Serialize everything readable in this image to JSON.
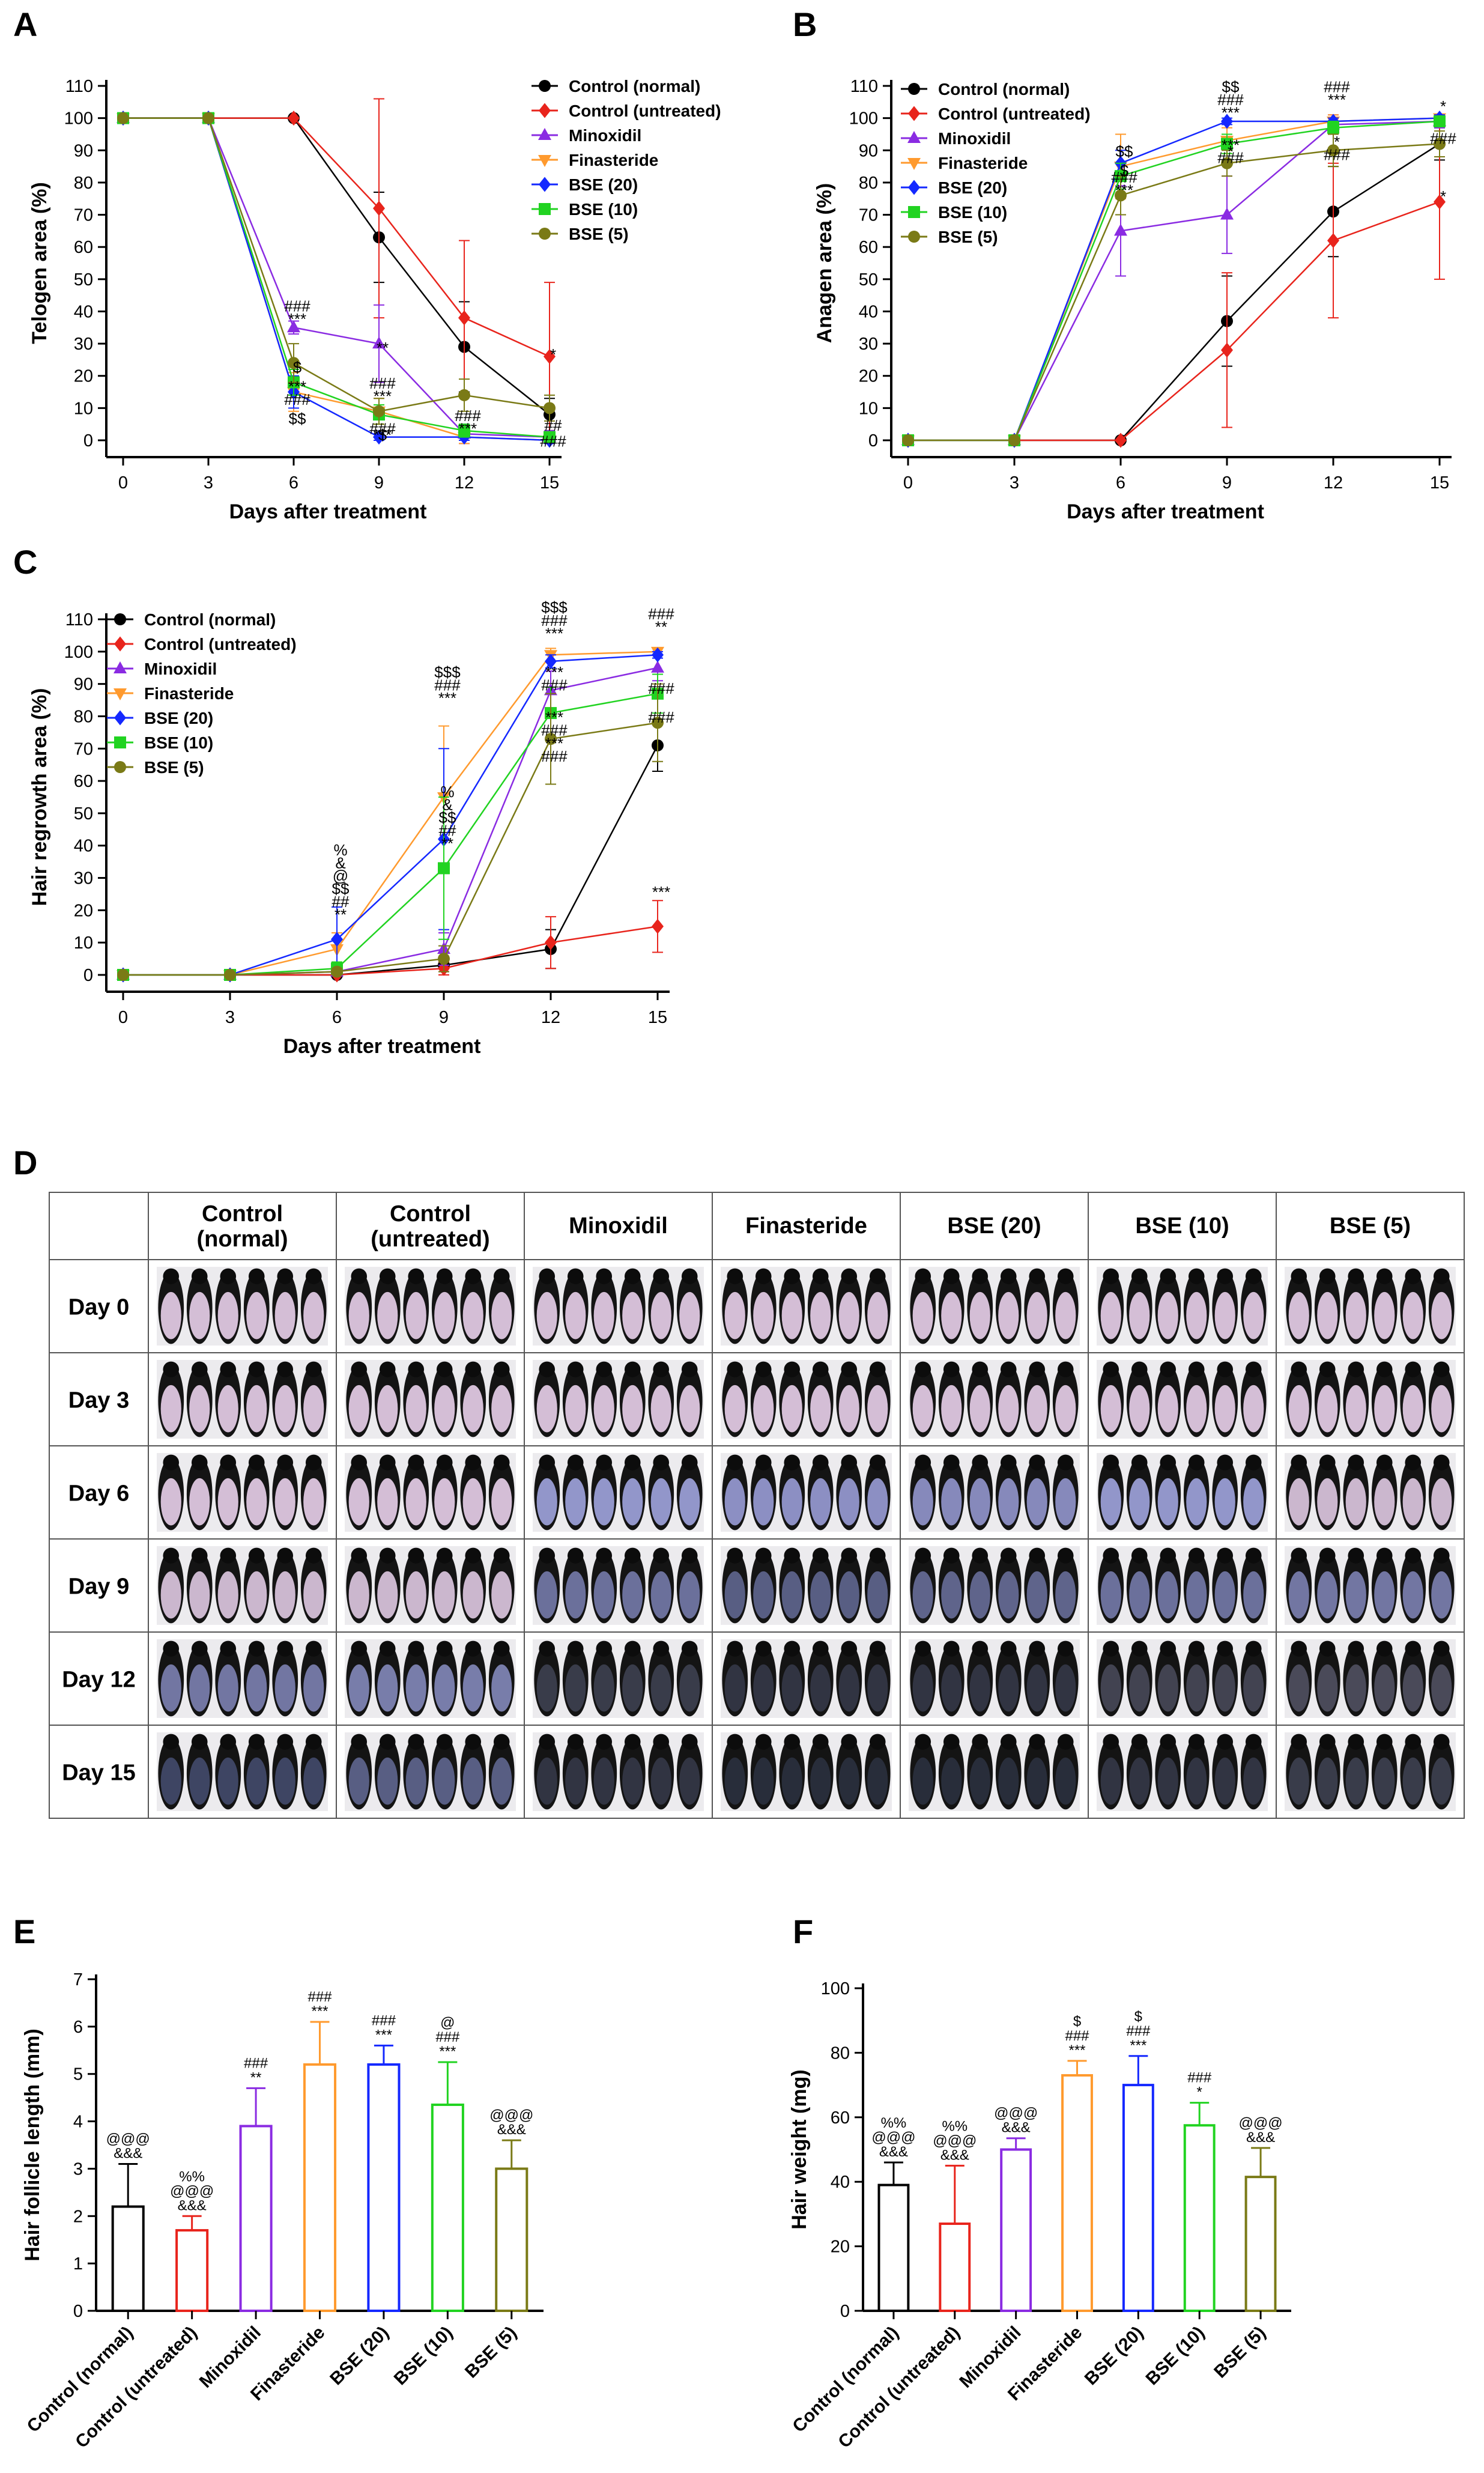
{
  "colors": {
    "Control (normal)": "#000000",
    "Control (untreated)": "#e8241c",
    "Minoxidil": "#8a2be2",
    "Finasteride": "#ff9a2e",
    "BSE (20)": "#1428ff",
    "BSE (10)": "#21d321",
    "BSE (5)": "#7a7a16"
  },
  "chart_data": [
    {
      "panel": "A",
      "type": "line",
      "xlabel": "Days after treatment",
      "ylabel": "Telogen area (%)",
      "x": [
        0,
        3,
        6,
        9,
        12,
        15
      ],
      "xticks": [
        "0",
        "3",
        "6",
        "9",
        "12",
        "15"
      ],
      "ylim": [
        0,
        110
      ],
      "yticks": [
        0,
        10,
        20,
        30,
        40,
        50,
        60,
        70,
        80,
        90,
        100,
        110
      ],
      "legend": "top-right",
      "series": [
        {
          "name": "Control (normal)",
          "values": [
            100,
            100,
            100,
            63,
            29,
            8
          ],
          "err": [
            0,
            0,
            0,
            14,
            14,
            5
          ]
        },
        {
          "name": "Control (untreated)",
          "values": [
            100,
            100,
            100,
            72,
            38,
            26
          ],
          "err": [
            0,
            0,
            0,
            34,
            24,
            23
          ]
        },
        {
          "name": "Minoxidil",
          "values": [
            100,
            100,
            35,
            30,
            2,
            1
          ],
          "err": [
            0,
            0,
            2,
            12,
            3,
            2
          ]
        },
        {
          "name": "Finasteride",
          "values": [
            100,
            100,
            15,
            9,
            1,
            0
          ],
          "err": [
            0,
            0,
            6,
            4,
            2,
            1
          ]
        },
        {
          "name": "BSE (20)",
          "values": [
            100,
            100,
            15,
            1,
            1,
            0
          ],
          "err": [
            0,
            0,
            5,
            1,
            1,
            1
          ]
        },
        {
          "name": "BSE (10)",
          "values": [
            100,
            100,
            18,
            8,
            3,
            1
          ],
          "err": [
            0,
            0,
            4,
            3,
            2,
            1
          ]
        },
        {
          "name": "BSE (5)",
          "values": [
            100,
            100,
            24,
            9,
            14,
            10
          ],
          "err": [
            0,
            0,
            6,
            4,
            5,
            4
          ]
        }
      ],
      "annotations": [
        {
          "x": 6,
          "y": 40,
          "text": "###"
        },
        {
          "x": 6,
          "y": 36,
          "text": "***"
        },
        {
          "x": 6,
          "y": 15,
          "text": "***"
        },
        {
          "x": 6,
          "y": 11,
          "text": "###"
        },
        {
          "x": 6,
          "y": 21,
          "text": "$"
        },
        {
          "x": 6,
          "y": 5,
          "text": "$$"
        },
        {
          "x": 9,
          "y": 27,
          "text": "**"
        },
        {
          "x": 9,
          "y": 16,
          "text": "###"
        },
        {
          "x": 9,
          "y": 12,
          "text": "***"
        },
        {
          "x": 9,
          "y": 0,
          "text": "$"
        },
        {
          "x": 9,
          "y": 0,
          "text": "***"
        },
        {
          "x": 9,
          "y": 2,
          "text": "###"
        },
        {
          "x": 12,
          "y": 6,
          "text": "###"
        },
        {
          "x": 12,
          "y": 2,
          "text": "***"
        },
        {
          "x": 15,
          "y": 25,
          "text": "*"
        },
        {
          "x": 15,
          "y": 3,
          "text": "##"
        },
        {
          "x": 15,
          "y": -2,
          "text": "###"
        }
      ]
    },
    {
      "panel": "B",
      "type": "line",
      "xlabel": "Days after treatment",
      "ylabel": "Anagen area (%)",
      "x": [
        0,
        3,
        6,
        9,
        12,
        15
      ],
      "xticks": [
        "0",
        "3",
        "6",
        "9",
        "12",
        "15"
      ],
      "ylim": [
        0,
        110
      ],
      "yticks": [
        0,
        10,
        20,
        30,
        40,
        50,
        60,
        70,
        80,
        90,
        100,
        110
      ],
      "legend": "top-left",
      "series": [
        {
          "name": "Control (normal)",
          "values": [
            0,
            0,
            0,
            37,
            71,
            92
          ],
          "err": [
            0,
            0,
            0,
            14,
            14,
            5
          ]
        },
        {
          "name": "Control (untreated)",
          "values": [
            0,
            0,
            0,
            28,
            62,
            74
          ],
          "err": [
            0,
            0,
            0,
            24,
            24,
            24
          ]
        },
        {
          "name": "Minoxidil",
          "values": [
            0,
            0,
            65,
            70,
            98,
            99
          ],
          "err": [
            0,
            0,
            14,
            12,
            3,
            2
          ]
        },
        {
          "name": "Finasteride",
          "values": [
            0,
            0,
            85,
            93,
            99,
            100
          ],
          "err": [
            0,
            0,
            10,
            4,
            2,
            1
          ]
        },
        {
          "name": "BSE (20)",
          "values": [
            0,
            0,
            86,
            99,
            99,
            100
          ],
          "err": [
            0,
            0,
            4,
            1,
            1,
            1
          ]
        },
        {
          "name": "BSE (10)",
          "values": [
            0,
            0,
            82,
            92,
            97,
            99
          ],
          "err": [
            0,
            0,
            4,
            3,
            2,
            1
          ]
        },
        {
          "name": "BSE (5)",
          "values": [
            0,
            0,
            76,
            86,
            90,
            92
          ],
          "err": [
            0,
            0,
            6,
            4,
            5,
            4
          ]
        }
      ],
      "annotations": [
        {
          "x": 6,
          "y": 88,
          "text": "$$"
        },
        {
          "x": 6,
          "y": 82,
          "text": "$"
        },
        {
          "x": 6,
          "y": 80,
          "text": "###"
        },
        {
          "x": 6,
          "y": 76,
          "text": "***"
        },
        {
          "x": 9,
          "y": 108,
          "text": "$$"
        },
        {
          "x": 9,
          "y": 104,
          "text": "###"
        },
        {
          "x": 9,
          "y": 100,
          "text": "***"
        },
        {
          "x": 9,
          "y": 90,
          "text": "***"
        },
        {
          "x": 9,
          "y": 86,
          "text": "###"
        },
        {
          "x": 9,
          "y": 88,
          "text": "*"
        },
        {
          "x": 12,
          "y": 108,
          "text": "###"
        },
        {
          "x": 12,
          "y": 104,
          "text": "***"
        },
        {
          "x": 12,
          "y": 91,
          "text": "*"
        },
        {
          "x": 12,
          "y": 87,
          "text": "###"
        },
        {
          "x": 15,
          "y": 102,
          "text": "*"
        },
        {
          "x": 15,
          "y": 92,
          "text": "###"
        },
        {
          "x": 15,
          "y": 74,
          "text": "*"
        }
      ]
    },
    {
      "panel": "C",
      "type": "line",
      "xlabel": "Days after treatment",
      "ylabel": "Hair regrowth area (%)",
      "x": [
        0,
        3,
        6,
        9,
        12,
        15
      ],
      "xticks": [
        "0",
        "3",
        "6",
        "9",
        "12",
        "15"
      ],
      "ylim": [
        0,
        110
      ],
      "yticks": [
        0,
        10,
        20,
        30,
        40,
        50,
        60,
        70,
        80,
        90,
        100,
        110
      ],
      "legend": "top-left",
      "series": [
        {
          "name": "Control (normal)",
          "values": [
            0,
            0,
            0,
            3,
            8,
            71
          ],
          "err": [
            0,
            0,
            0,
            2,
            6,
            8
          ]
        },
        {
          "name": "Control (untreated)",
          "values": [
            0,
            0,
            0,
            2,
            10,
            15
          ],
          "err": [
            0,
            0,
            0,
            2,
            8,
            8
          ]
        },
        {
          "name": "Minoxidil",
          "values": [
            0,
            0,
            1,
            8,
            88,
            95
          ],
          "err": [
            0,
            0,
            1,
            5,
            6,
            4
          ]
        },
        {
          "name": "Finasteride",
          "values": [
            0,
            0,
            8,
            55,
            99,
            100
          ],
          "err": [
            0,
            0,
            5,
            22,
            2,
            1
          ]
        },
        {
          "name": "BSE (20)",
          "values": [
            0,
            0,
            11,
            42,
            97,
            99
          ],
          "err": [
            0,
            0,
            10,
            28,
            2,
            1
          ]
        },
        {
          "name": "BSE (10)",
          "values": [
            0,
            0,
            2,
            33,
            81,
            87
          ],
          "err": [
            0,
            0,
            2,
            22,
            8,
            6
          ]
        },
        {
          "name": "BSE (5)",
          "values": [
            0,
            0,
            1,
            5,
            73,
            78
          ],
          "err": [
            0,
            0,
            1,
            4,
            14,
            12
          ]
        }
      ],
      "annotations": [
        {
          "x": 6,
          "y": 37,
          "text": "%"
        },
        {
          "x": 6,
          "y": 33,
          "text": "&"
        },
        {
          "x": 6,
          "y": 29,
          "text": "@"
        },
        {
          "x": 6,
          "y": 25,
          "text": "$$"
        },
        {
          "x": 6,
          "y": 21,
          "text": "##"
        },
        {
          "x": 6,
          "y": 17,
          "text": "**"
        },
        {
          "x": 9,
          "y": 92,
          "text": "$$$"
        },
        {
          "x": 9,
          "y": 88,
          "text": "###"
        },
        {
          "x": 9,
          "y": 84,
          "text": "***"
        },
        {
          "x": 9,
          "y": 55,
          "text": "%"
        },
        {
          "x": 9,
          "y": 51,
          "text": "&"
        },
        {
          "x": 9,
          "y": 47,
          "text": "$$"
        },
        {
          "x": 9,
          "y": 43,
          "text": "##"
        },
        {
          "x": 9,
          "y": 39,
          "text": "**"
        },
        {
          "x": 12,
          "y": 112,
          "text": "$$$"
        },
        {
          "x": 12,
          "y": 108,
          "text": "###"
        },
        {
          "x": 12,
          "y": 104,
          "text": "***"
        },
        {
          "x": 12,
          "y": 92,
          "text": "***"
        },
        {
          "x": 12,
          "y": 88,
          "text": "###"
        },
        {
          "x": 12,
          "y": 78,
          "text": "***"
        },
        {
          "x": 12,
          "y": 74,
          "text": "###"
        },
        {
          "x": 12,
          "y": 70,
          "text": "***"
        },
        {
          "x": 12,
          "y": 66,
          "text": "###"
        },
        {
          "x": 15,
          "y": 110,
          "text": "###"
        },
        {
          "x": 15,
          "y": 106,
          "text": "**"
        },
        {
          "x": 15,
          "y": 87,
          "text": "###"
        },
        {
          "x": 15,
          "y": 78,
          "text": "###"
        },
        {
          "x": 15,
          "y": 24,
          "text": "***"
        }
      ]
    },
    {
      "panel": "D",
      "type": "table",
      "columns": [
        "Control\n(normal)",
        "Control\n(untreated)",
        "Minoxidil",
        "Finasteride",
        "BSE (20)",
        "BSE (10)",
        "BSE (5)"
      ],
      "rows": [
        "Day 0",
        "Day 3",
        "Day 6",
        "Day 9",
        "Day 12",
        "Day 15"
      ],
      "regrowth": [
        [
          0,
          0,
          0,
          0,
          0,
          0,
          0
        ],
        [
          0,
          0,
          0,
          0,
          0,
          0,
          0
        ],
        [
          0,
          0,
          0.1,
          0.15,
          0.2,
          0.1,
          0.05
        ],
        [
          0.05,
          0.05,
          0.4,
          0.55,
          0.5,
          0.4,
          0.35
        ],
        [
          0.35,
          0.3,
          0.9,
          0.95,
          0.95,
          0.85,
          0.8
        ],
        [
          0.75,
          0.55,
          0.95,
          1,
          1,
          0.95,
          0.9
        ]
      ]
    },
    {
      "panel": "E",
      "type": "bar",
      "ylabel": "Hair follicle length (mm)",
      "categories": [
        "Control (normal)",
        "Control (untreated)",
        "Minoxidil",
        "Finasteride",
        "BSE (20)",
        "BSE (10)",
        "BSE (5)"
      ],
      "values": [
        2.2,
        1.7,
        3.9,
        5.2,
        5.2,
        4.35,
        3.0
      ],
      "err": [
        0.9,
        0.3,
        0.8,
        0.9,
        0.4,
        0.9,
        0.6
      ],
      "ylim": [
        0,
        7
      ],
      "yticks": [
        0,
        1,
        2,
        3,
        4,
        5,
        6,
        7
      ],
      "annotations": [
        [
          "@@@",
          "&&&"
        ],
        [
          "%%",
          "@@@",
          "&&&"
        ],
        [
          "###",
          "**"
        ],
        [
          "###",
          "***"
        ],
        [
          "###",
          "***"
        ],
        [
          "@",
          "###",
          "***"
        ],
        [
          "@@@",
          "&&&"
        ]
      ]
    },
    {
      "panel": "F",
      "type": "bar",
      "ylabel": "Hair weight (mg)",
      "categories": [
        "Control (normal)",
        "Control (untreated)",
        "Minoxidil",
        "Finasteride",
        "BSE (20)",
        "BSE (10)",
        "BSE (5)"
      ],
      "values": [
        39,
        27,
        50,
        73,
        70,
        57.5,
        41.5
      ],
      "err": [
        7,
        18,
        3.5,
        4.5,
        9,
        7,
        9
      ],
      "ylim": [
        0,
        100
      ],
      "yticks": [
        0,
        20,
        40,
        60,
        80,
        100
      ],
      "annotations": [
        [
          "%%",
          "@@@",
          "&&&"
        ],
        [
          "%%",
          "@@@",
          "&&&"
        ],
        [
          "@@@",
          "&&&"
        ],
        [
          "$",
          "###",
          "***"
        ],
        [
          "$",
          "###",
          "***"
        ],
        [
          "###",
          "*"
        ],
        [
          "@@@",
          "&&&"
        ]
      ]
    }
  ]
}
